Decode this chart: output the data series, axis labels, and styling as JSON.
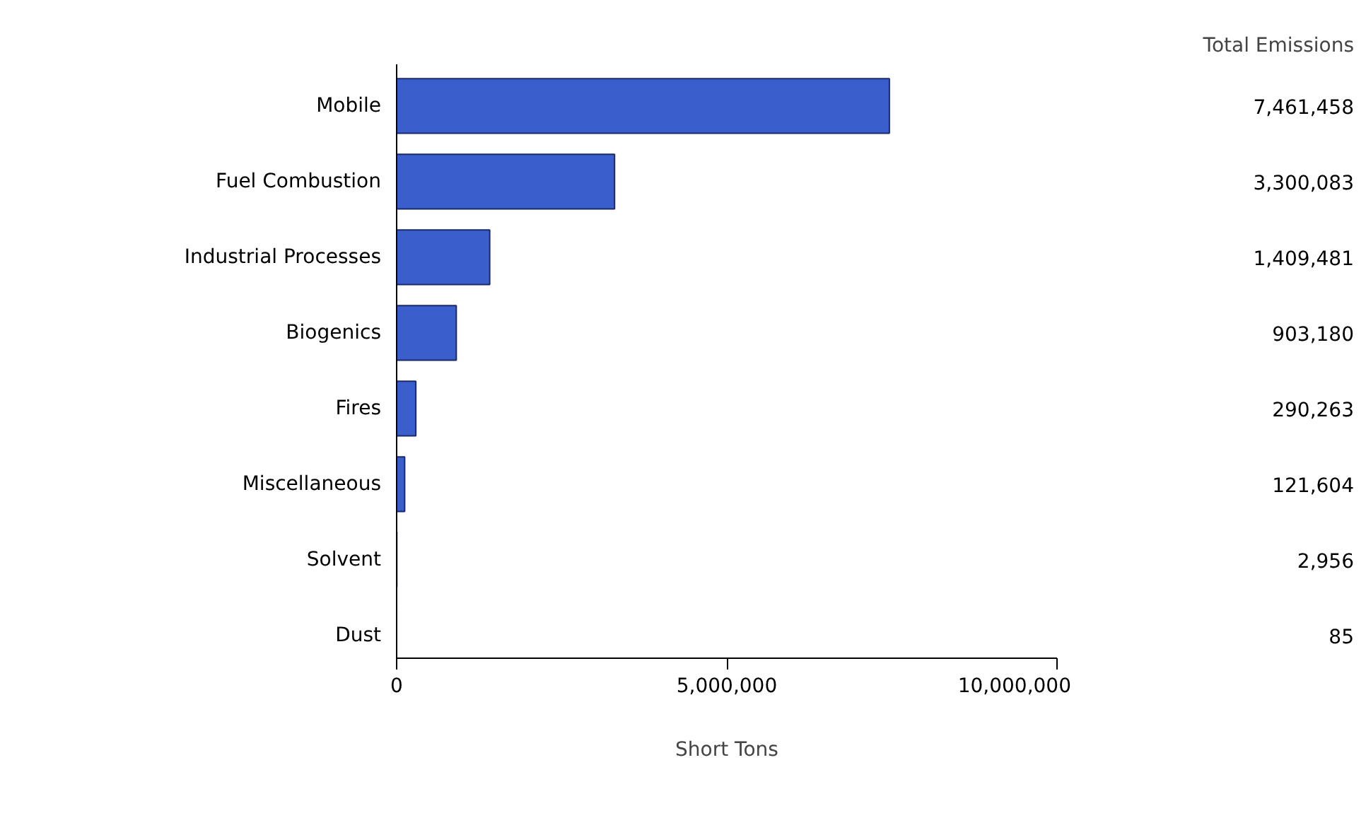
{
  "chart_data": {
    "type": "bar",
    "orientation": "horizontal",
    "xlabel": "Short Tons",
    "categories": [
      "Mobile",
      "Fuel Combustion",
      "Industrial Processes",
      "Biogenics",
      "Fires",
      "Miscellaneous",
      "Solvent",
      "Dust"
    ],
    "values": [
      7461458,
      3300083,
      1409481,
      903180,
      290263,
      121604,
      2956,
      85
    ],
    "value_labels": [
      "7,461,458",
      "3,300,083",
      "1,409,481",
      "903,180",
      "290,263",
      "121,604",
      "2,956",
      "85"
    ],
    "color": "#3a5fcd",
    "xlim": [
      0,
      10000000
    ],
    "xticks": [
      0,
      {
        "value": 5000000,
        "label": "5,000,000"
      },
      {
        "value": 10000000,
        "label": "10,000,000"
      }
    ],
    "annotations": [
      "Total Emissions"
    ],
    "grid": false
  }
}
